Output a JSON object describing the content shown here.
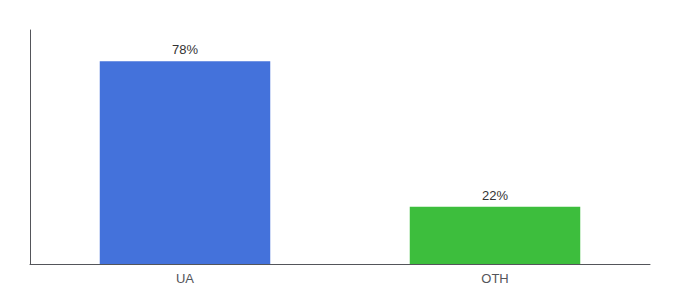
{
  "chart_data": {
    "type": "bar",
    "categories": [
      "UA",
      "OTH"
    ],
    "values": [
      78,
      22
    ],
    "value_labels": [
      "78%",
      "22%"
    ],
    "colors": [
      "#4472db",
      "#3dbe3d"
    ],
    "ylim": [
      0,
      90
    ],
    "tick_labels": "x",
    "data_labels": true,
    "grid": false
  }
}
